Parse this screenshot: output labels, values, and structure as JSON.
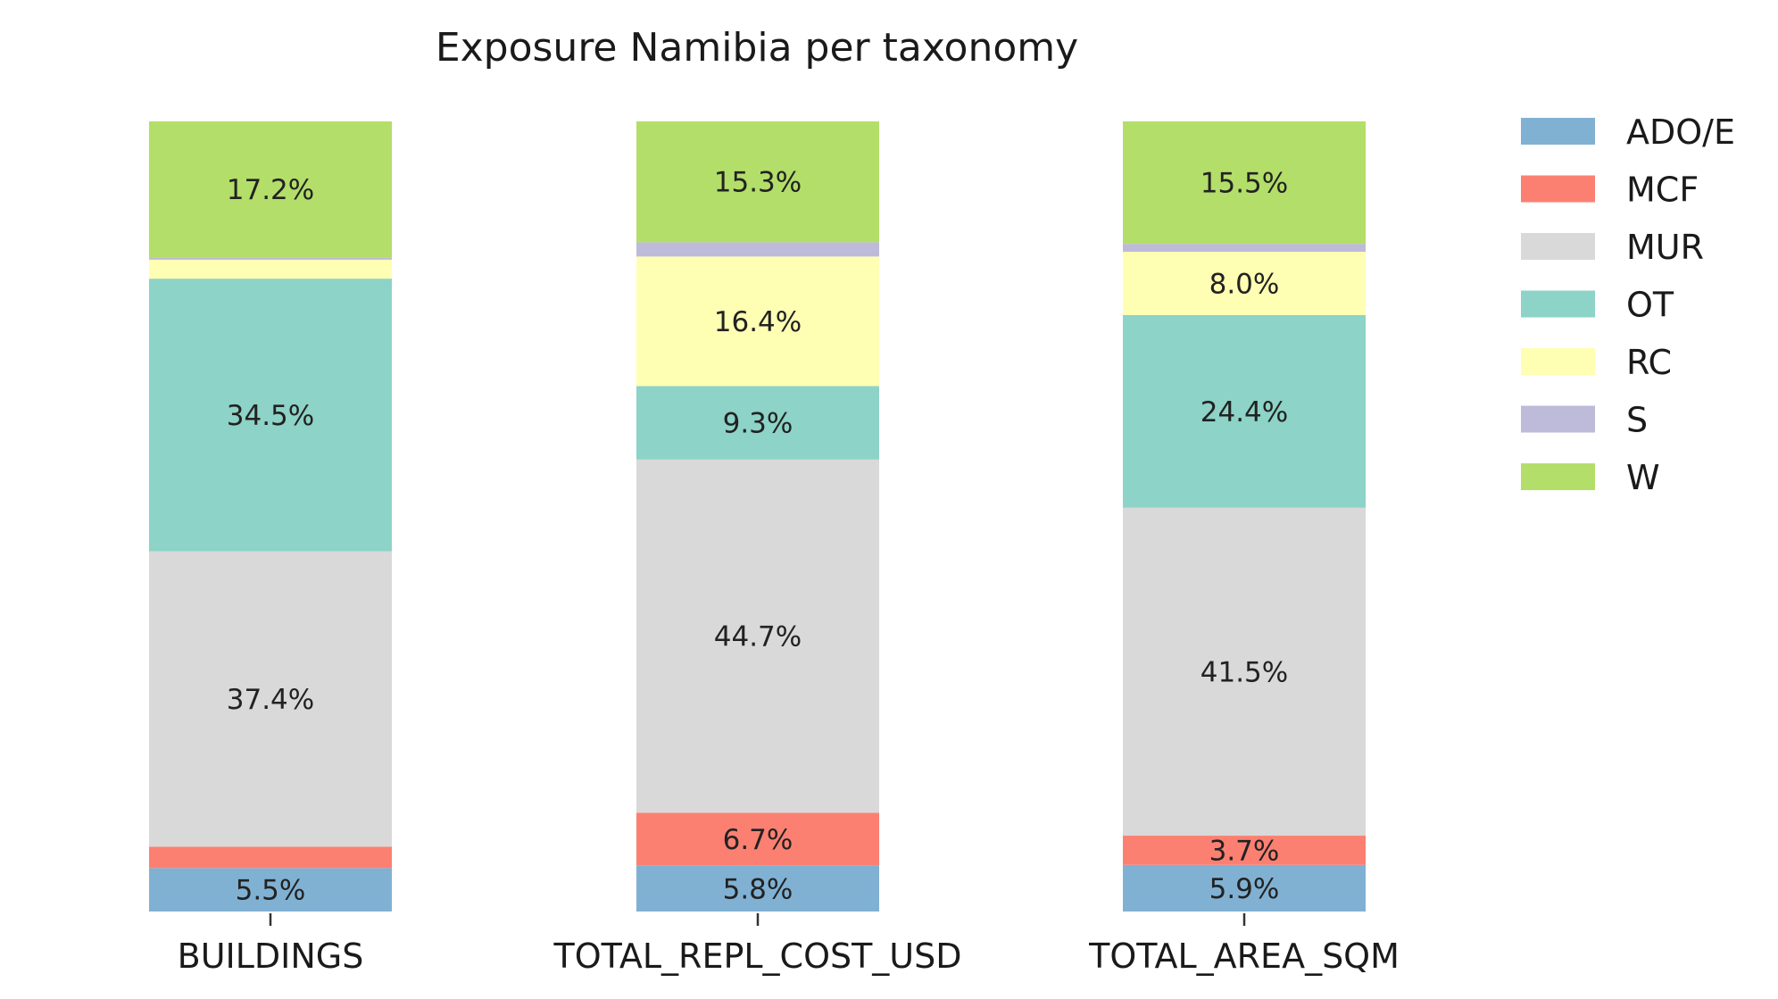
{
  "chart_data": {
    "type": "bar",
    "stacked": true,
    "normalized_percent": true,
    "title": "Exposure Namibia per taxonomy",
    "xlabel": "",
    "ylabel": "",
    "ylim": [
      0,
      100
    ],
    "grid": false,
    "legend": "right",
    "categories": [
      "BUILDINGS",
      "TOTAL_REPL_COST_USD",
      "TOTAL_AREA_SQM"
    ],
    "series": [
      {
        "name": "ADO/E",
        "color": "#80b1d3",
        "values": [
          5.5,
          5.8,
          5.9
        ],
        "labels": [
          "5.5%",
          "5.8%",
          "5.9%"
        ]
      },
      {
        "name": "MCF",
        "color": "#fb8072",
        "values": [
          2.7,
          6.7,
          3.7
        ],
        "labels": [
          "",
          "6.7%",
          "3.7%"
        ]
      },
      {
        "name": "MUR",
        "color": "#d9d9d9",
        "values": [
          37.4,
          44.7,
          41.5
        ],
        "labels": [
          "37.4%",
          "44.7%",
          "41.5%"
        ]
      },
      {
        "name": "OT",
        "color": "#8dd3c7",
        "values": [
          34.5,
          9.3,
          24.4
        ],
        "labels": [
          "34.5%",
          "9.3%",
          "24.4%"
        ]
      },
      {
        "name": "RC",
        "color": "#ffffb3",
        "values": [
          2.4,
          16.4,
          8.0
        ],
        "labels": [
          "",
          "16.4%",
          "8.0%"
        ]
      },
      {
        "name": "S",
        "color": "#bebada",
        "values": [
          0.3,
          1.8,
          1.0
        ],
        "labels": [
          "",
          "",
          ""
        ]
      },
      {
        "name": "W",
        "color": "#b3de69",
        "values": [
          17.2,
          15.3,
          15.5
        ],
        "labels": [
          "17.2%",
          "15.3%",
          "15.5%"
        ]
      }
    ]
  }
}
